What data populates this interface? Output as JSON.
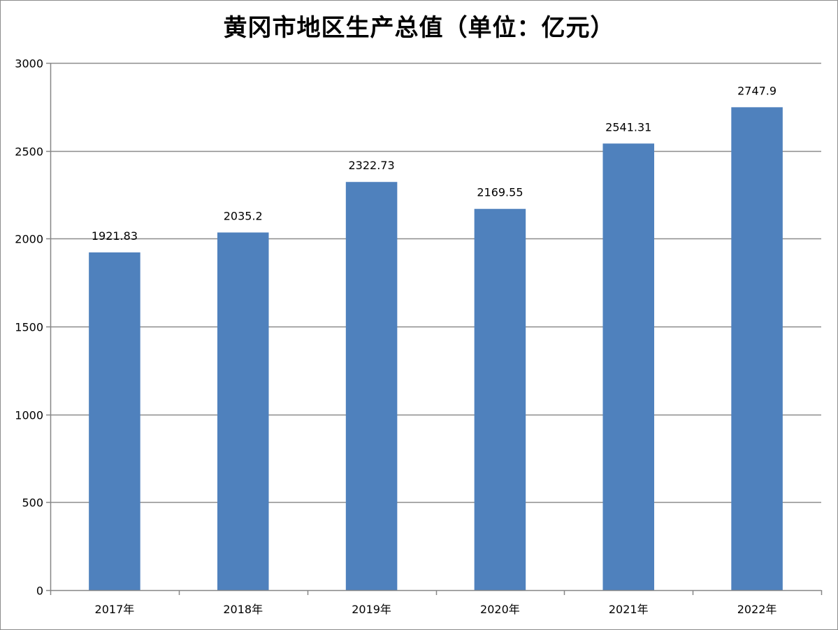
{
  "chart_data": {
    "type": "bar",
    "title": "黄冈市地区生产总值（单位：亿元）",
    "categories": [
      "2017年",
      "2018年",
      "2019年",
      "2020年",
      "2021年",
      "2022年"
    ],
    "values": [
      1921.83,
      2035.2,
      2322.73,
      2169.55,
      2541.31,
      2747.9
    ],
    "data_labels": [
      "1921.83",
      "2035.2",
      "2322.73",
      "2169.55",
      "2541.31",
      "2747.9"
    ],
    "ylim": [
      0,
      3000
    ],
    "yticks": [
      0,
      500,
      1000,
      1500,
      2000,
      2500,
      3000
    ],
    "xlabel": "",
    "ylabel": "",
    "grid": true,
    "legend": "none",
    "bar_color": "#4f81bd",
    "grid_color": "#8c8c8c"
  }
}
